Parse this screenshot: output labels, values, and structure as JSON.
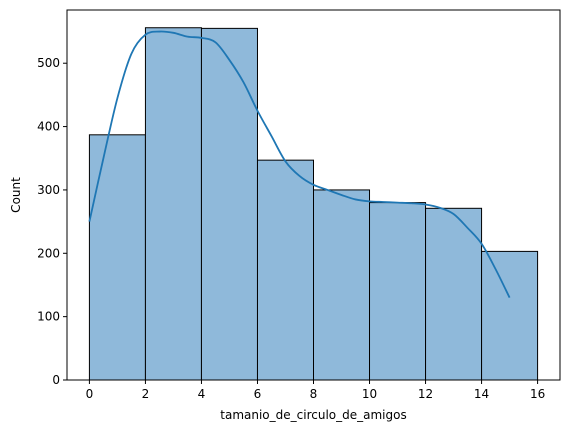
{
  "chart_data": {
    "type": "bar",
    "title": "",
    "xlabel": "tamanio_de_circulo_de_amigos",
    "ylabel": "Count",
    "bin_edges": [
      0,
      2,
      4,
      6,
      8,
      10,
      12,
      14,
      16
    ],
    "values": [
      387,
      556,
      555,
      347,
      300,
      280,
      271,
      203
    ],
    "xlim": [
      -0.8,
      16.8
    ],
    "ylim": [
      0,
      584
    ],
    "xticks": [
      0,
      2,
      4,
      6,
      8,
      10,
      12,
      14,
      16
    ],
    "xtick_labels": [
      "0",
      "2",
      "4",
      "6",
      "8",
      "10",
      "12",
      "14",
      "16"
    ],
    "yticks": [
      0,
      100,
      200,
      300,
      400,
      500
    ],
    "ytick_labels": [
      "0",
      "100",
      "200",
      "300",
      "400",
      "500"
    ],
    "kde": {
      "x": [
        0,
        0.5,
        1,
        1.5,
        2,
        2.5,
        3,
        3.5,
        4,
        4.5,
        5,
        5.5,
        6,
        6.5,
        7,
        7.5,
        8,
        8.5,
        9,
        9.5,
        10,
        10.5,
        11,
        11.5,
        12,
        12.5,
        13,
        13.5,
        14,
        14.5,
        15
      ],
      "y": [
        250,
        350,
        445,
        515,
        545,
        550,
        548,
        542,
        540,
        533,
        505,
        470,
        425,
        385,
        345,
        322,
        308,
        300,
        292,
        285,
        282,
        281,
        280,
        279,
        277,
        272,
        262,
        240,
        215,
        175,
        130
      ]
    },
    "grid": false,
    "legend": "none",
    "colors": {
      "bar_fill": "#8fb9da",
      "bar_edge": "#000000",
      "kde_line": "#1f77b4",
      "axes": "#000000"
    }
  }
}
